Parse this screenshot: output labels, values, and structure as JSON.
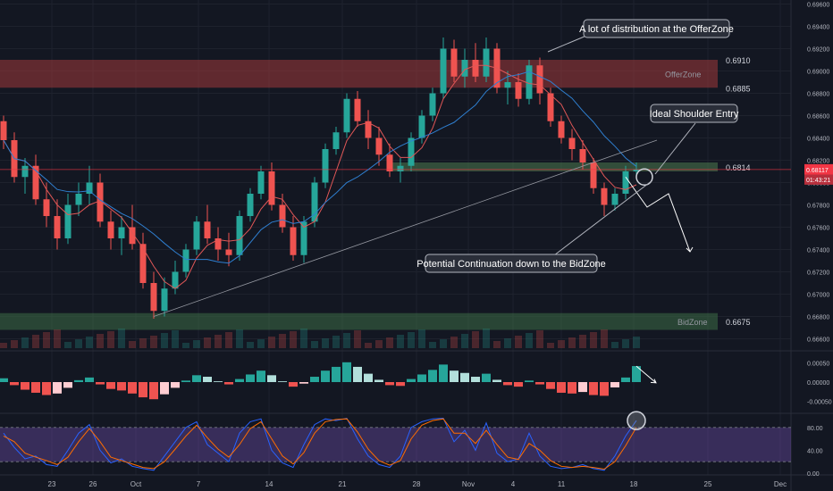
{
  "chart_data": {
    "type": "candlestick",
    "series": [
      {
        "name": "",
        "candles": [
          [
            0.6855,
            0.686,
            0.683,
            0.6838
          ],
          [
            0.6838,
            0.6845,
            0.68,
            0.6805
          ],
          [
            0.6805,
            0.6822,
            0.679,
            0.6815
          ],
          [
            0.6815,
            0.6825,
            0.678,
            0.6785
          ],
          [
            0.6785,
            0.68,
            0.676,
            0.677
          ],
          [
            0.677,
            0.6785,
            0.674,
            0.675
          ],
          [
            0.675,
            0.679,
            0.6745,
            0.678
          ],
          [
            0.678,
            0.68,
            0.677,
            0.679
          ],
          [
            0.679,
            0.6815,
            0.678,
            0.68
          ],
          [
            0.68,
            0.6808,
            0.676,
            0.6765
          ],
          [
            0.6765,
            0.6775,
            0.674,
            0.675
          ],
          [
            0.675,
            0.677,
            0.6735,
            0.676
          ],
          [
            0.676,
            0.678,
            0.674,
            0.6745
          ],
          [
            0.6745,
            0.6755,
            0.6705,
            0.671
          ],
          [
            0.671,
            0.672,
            0.6678,
            0.6685
          ],
          [
            0.6685,
            0.6715,
            0.668,
            0.6705
          ],
          [
            0.6705,
            0.673,
            0.67,
            0.672
          ],
          [
            0.672,
            0.6745,
            0.6715,
            0.674
          ],
          [
            0.674,
            0.677,
            0.6735,
            0.6765
          ],
          [
            0.6765,
            0.678,
            0.6745,
            0.675
          ],
          [
            0.675,
            0.676,
            0.673,
            0.674
          ],
          [
            0.674,
            0.6755,
            0.6725,
            0.6735
          ],
          [
            0.6735,
            0.6775,
            0.673,
            0.677
          ],
          [
            0.677,
            0.6795,
            0.6765,
            0.679
          ],
          [
            0.679,
            0.6815,
            0.6785,
            0.681
          ],
          [
            0.681,
            0.6818,
            0.6775,
            0.678
          ],
          [
            0.678,
            0.679,
            0.6755,
            0.676
          ],
          [
            0.676,
            0.677,
            0.673,
            0.6735
          ],
          [
            0.6735,
            0.677,
            0.6728,
            0.6765
          ],
          [
            0.6765,
            0.6805,
            0.676,
            0.68
          ],
          [
            0.68,
            0.6835,
            0.6795,
            0.683
          ],
          [
            0.683,
            0.685,
            0.6825,
            0.6845
          ],
          [
            0.6845,
            0.688,
            0.684,
            0.6875
          ],
          [
            0.6875,
            0.6882,
            0.685,
            0.6855
          ],
          [
            0.6855,
            0.6865,
            0.683,
            0.684
          ],
          [
            0.684,
            0.685,
            0.6815,
            0.6825
          ],
          [
            0.6825,
            0.6835,
            0.6805,
            0.681
          ],
          [
            0.681,
            0.6822,
            0.68,
            0.6815
          ],
          [
            0.6815,
            0.6845,
            0.681,
            0.684
          ],
          [
            0.684,
            0.6865,
            0.6835,
            0.686
          ],
          [
            0.686,
            0.6885,
            0.6855,
            0.688
          ],
          [
            0.688,
            0.693,
            0.6875,
            0.692
          ],
          [
            0.692,
            0.6928,
            0.689,
            0.6895
          ],
          [
            0.6895,
            0.692,
            0.6885,
            0.691
          ],
          [
            0.691,
            0.6925,
            0.689,
            0.6895
          ],
          [
            0.6895,
            0.693,
            0.689,
            0.692
          ],
          [
            0.692,
            0.6925,
            0.688,
            0.6885
          ],
          [
            0.6885,
            0.69,
            0.687,
            0.689
          ],
          [
            0.689,
            0.6898,
            0.6868,
            0.6875
          ],
          [
            0.6875,
            0.691,
            0.687,
            0.6905
          ],
          [
            0.6905,
            0.6912,
            0.687,
            0.688
          ],
          [
            0.688,
            0.6885,
            0.685,
            0.6855
          ],
          [
            0.6855,
            0.686,
            0.6835,
            0.684
          ],
          [
            0.684,
            0.6848,
            0.682,
            0.683
          ],
          [
            0.683,
            0.6838,
            0.6812,
            0.6818
          ],
          [
            0.6818,
            0.6822,
            0.679,
            0.6795
          ],
          [
            0.6795,
            0.68,
            0.677,
            0.678
          ],
          [
            0.678,
            0.6795,
            0.6775,
            0.679
          ],
          [
            0.679,
            0.6815,
            0.6785,
            0.681
          ],
          [
            0.681,
            0.6818,
            0.6805,
            0.6812
          ]
        ]
      }
    ],
    "x_ticks": [
      "23",
      "26",
      "Oct",
      "7",
      "14",
      "21",
      "28",
      "Nov",
      "4",
      "11",
      "18",
      "25",
      "Dec"
    ],
    "y_ticks": [
      "0.69600",
      "0.69400",
      "0.69200",
      "0.69000",
      "0.68800",
      "0.68600",
      "0.68400",
      "0.68200",
      "0.68000",
      "0.67800",
      "0.67600",
      "0.67400",
      "0.67200",
      "0.67000",
      "0.66800",
      "0.66600"
    ],
    "ylim": [
      0.665,
      0.6962
    ],
    "zones": [
      {
        "name": "OfferZone",
        "top": 0.691,
        "bottom": 0.6885,
        "top_label": "0.6910",
        "bottom_label": "0.6885",
        "color": "#a0393b"
      },
      {
        "name": "",
        "top": 0.6818,
        "bottom": 0.681,
        "level_label": "0.6814",
        "color": "#4d7a4e"
      },
      {
        "name": "BidZone",
        "top": 0.6683,
        "bottom": 0.6668,
        "level_label": "0.6675",
        "color": "#3d6b45"
      }
    ],
    "horizontal_line": 0.68117,
    "price_tag": {
      "value": "0.68117",
      "countdown": "01:43:21"
    },
    "annotations": [
      "A lot of distribution at the OfferZone",
      "Ideal Shoulder Entry",
      "Potential Continuation down to the BidZone"
    ],
    "projection_path": [
      [
        58,
        0.6805
      ],
      [
        60,
        0.6778
      ],
      [
        62,
        0.679
      ],
      [
        64,
        0.6738
      ]
    ],
    "macd": {
      "y_ticks": [
        "0.00050",
        "0.00000",
        "-0.00050"
      ],
      "ylim": [
        -0.00075,
        0.00075
      ],
      "values": [
        0.0001,
        -8e-05,
        -0.0002,
        -0.00028,
        -0.00034,
        -0.0003,
        -0.00015,
        5e-05,
        0.00012,
        -6e-05,
        -0.00018,
        -0.00022,
        -0.0003,
        -0.0004,
        -0.00045,
        -0.00032,
        -0.00015,
        4e-05,
        0.00018,
        0.00014,
        2e-05,
        -6e-05,
        8e-05,
        0.0002,
        0.0003,
        0.00018,
        2e-05,
        -0.00012,
        -4e-05,
        0.00014,
        0.0003,
        0.0004,
        0.00052,
        0.0004,
        0.00022,
        6e-05,
        -8e-05,
        -0.0001,
        8e-05,
        0.0002,
        0.00032,
        0.00046,
        0.0003,
        0.00024,
        0.00014,
        0.00022,
        6e-05,
        -8e-05,
        -0.00012,
        4e-05,
        -6e-05,
        -0.00018,
        -0.00028,
        -0.0003,
        -0.00026,
        -0.00034,
        -0.00036,
        -0.00014,
        0.00012,
        0.00042
      ]
    },
    "stochastic": {
      "y_ticks": [
        "80.00",
        "40.00",
        "0.00"
      ],
      "ylim": [
        0,
        100
      ],
      "band": [
        20,
        80
      ],
      "k": [
        70,
        45,
        25,
        30,
        15,
        12,
        40,
        70,
        85,
        40,
        18,
        25,
        12,
        8,
        5,
        30,
        55,
        80,
        90,
        50,
        35,
        20,
        70,
        90,
        95,
        40,
        18,
        10,
        50,
        85,
        95,
        92,
        96,
        60,
        30,
        15,
        10,
        30,
        80,
        90,
        95,
        96,
        55,
        75,
        40,
        88,
        35,
        20,
        25,
        70,
        30,
        12,
        8,
        10,
        15,
        8,
        5,
        30,
        65,
        92
      ],
      "d": [
        65,
        55,
        35,
        28,
        22,
        15,
        28,
        55,
        78,
        55,
        28,
        22,
        16,
        10,
        8,
        20,
        42,
        65,
        84,
        62,
        42,
        28,
        50,
        78,
        90,
        60,
        30,
        16,
        36,
        70,
        90,
        94,
        95,
        72,
        42,
        22,
        14,
        22,
        60,
        84,
        92,
        95,
        70,
        70,
        52,
        75,
        50,
        28,
        24,
        52,
        40,
        22,
        12,
        10,
        12,
        10,
        7,
        20,
        48,
        80
      ]
    }
  }
}
